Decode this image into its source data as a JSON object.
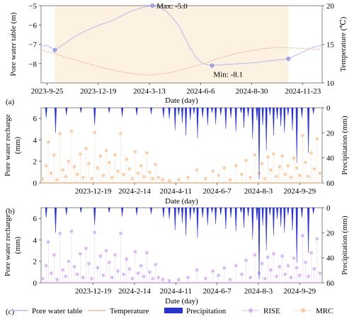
{
  "chart_data": [
    {
      "panel_label": "(a)",
      "type": "line",
      "xlabel": "Date (day)",
      "ylabel": "Pore water table (m)",
      "y2label": "Temperature (℃)",
      "x_ticks": [
        "2023-9-25",
        "2023-12-19",
        "2024-3-13",
        "2024-6-6",
        "2024-8-30",
        "2024-11-23"
      ],
      "x_range": [
        "2023-9-15",
        "2024-12-25"
      ],
      "ylim": [
        -9,
        -5
      ],
      "y_ticks": [
        -5,
        -6,
        -7,
        -8
      ],
      "y2lim": [
        10,
        20
      ],
      "y2_ticks": [
        20,
        15,
        10
      ],
      "shaded_period": [
        "2023-10-08",
        "2024-10-30"
      ],
      "shade_color": "#fdf1e1",
      "series": [
        {
          "name": "Pore water table",
          "color": "#b9b9ee",
          "points": [
            [
              "2023-9-15",
              -7.1
            ],
            [
              "2023-9-25",
              -7.05
            ],
            [
              "2023-10-08",
              -7.3
            ],
            [
              "2023-10-25",
              -6.95
            ],
            [
              "2023-11-10",
              -6.6
            ],
            [
              "2023-11-25",
              -6.35
            ],
            [
              "2023-12-10",
              -6.15
            ],
            [
              "2023-12-25",
              -5.95
            ],
            [
              "2024-1-10",
              -5.8
            ],
            [
              "2024-1-25",
              -5.55
            ],
            [
              "2024-2-10",
              -5.3
            ],
            [
              "2024-2-25",
              -5.15
            ],
            [
              "2024-3-08",
              -5.05
            ],
            [
              "2024-3-18",
              -5.0
            ],
            [
              "2024-3-30",
              -5.1
            ],
            [
              "2024-4-10",
              -5.3
            ],
            [
              "2024-4-20",
              -5.6
            ],
            [
              "2024-5-01",
              -6.05
            ],
            [
              "2024-5-10",
              -6.6
            ],
            [
              "2024-5-20",
              -7.2
            ],
            [
              "2024-5-30",
              -7.7
            ],
            [
              "2024-6-10",
              -8.0
            ],
            [
              "2024-6-25",
              -8.1
            ],
            [
              "2024-7-15",
              -8.05
            ],
            [
              "2024-8-10",
              -8.0
            ],
            [
              "2024-9-05",
              -7.95
            ],
            [
              "2024-10-01",
              -7.85
            ],
            [
              "2024-10-30",
              -7.75
            ],
            [
              "2024-11-23",
              -7.4
            ],
            [
              "2024-12-10",
              -7.15
            ],
            [
              "2024-12-25",
              -7.05
            ]
          ]
        },
        {
          "name": "Temperature",
          "axis": "right",
          "color": "#e8b9a9",
          "points": [
            [
              "2023-9-15",
              14.3
            ],
            [
              "2023-10-15",
              13.6
            ],
            [
              "2023-11-15",
              12.9
            ],
            [
              "2023-12-15",
              12.2
            ],
            [
              "2024-1-15",
              11.6
            ],
            [
              "2024-2-15",
              11.2
            ],
            [
              "2024-3-13",
              11.0
            ],
            [
              "2024-4-15",
              11.3
            ],
            [
              "2024-5-15",
              11.9
            ],
            [
              "2024-6-15",
              12.6
            ],
            [
              "2024-7-15",
              13.4
            ],
            [
              "2024-8-15",
              14.0
            ],
            [
              "2024-9-15",
              14.4
            ],
            [
              "2024-10-15",
              14.6
            ],
            [
              "2024-11-15",
              14.5
            ],
            [
              "2024-12-25",
              14.3
            ]
          ]
        }
      ],
      "markers": [
        {
          "date": "2023-10-08",
          "value": -7.3
        },
        {
          "date": "2024-3-18",
          "value": -5.0
        },
        {
          "date": "2024-6-25",
          "value": -8.1
        },
        {
          "date": "2024-10-30",
          "value": -7.75
        }
      ],
      "annotations": [
        {
          "text": "Max: -5.0",
          "date": "2024-3-18",
          "value": -5.0
        },
        {
          "text": "Min: -8.1",
          "date": "2024-6-25",
          "value": -8.1
        }
      ]
    },
    {
      "panel_label": "(b)",
      "type": "scatter",
      "xlabel": "Date (day)",
      "ylabel": "Pore water recharge (mm)",
      "y2label": "Precipitation (mm)",
      "x_ticks": [
        "2023-12-19",
        "2024-2-14",
        "2024-4-11",
        "2024-6-7",
        "2024-8-3",
        "2024-9-29"
      ],
      "x_range": [
        "2023-10-08",
        "2024-10-30"
      ],
      "ylim": [
        0,
        7
      ],
      "y_ticks": [
        0,
        2,
        4,
        6
      ],
      "y2lim": [
        0,
        60
      ],
      "y2_ticks": [
        0,
        20,
        40,
        60
      ],
      "series": [
        {
          "name": "MRC",
          "color": "#f7c9a0",
          "values_ref": "recharge"
        },
        {
          "name": "Precipitation",
          "color": "#2a35c8",
          "values_ref": "precipitation"
        }
      ]
    },
    {
      "panel_label": "(c)",
      "type": "scatter",
      "xlabel": "Date (day)",
      "ylabel": "Pore water recharge (mm)",
      "y2label": "Precipitation (mm)",
      "x_ticks": [
        "2023-12-19",
        "2024-2-14",
        "2024-4-11",
        "2024-6-7",
        "2024-8-3",
        "2024-9-29"
      ],
      "x_range": [
        "2023-10-08",
        "2024-10-30"
      ],
      "ylim": [
        0,
        7
      ],
      "y_ticks": [
        0,
        2,
        4,
        6
      ],
      "y2lim": [
        0,
        60
      ],
      "y2_ticks": [
        0,
        20,
        40,
        60
      ],
      "series": [
        {
          "name": "RISE",
          "color": "#d5b2ee",
          "values_ref": "recharge"
        },
        {
          "name": "Precipitation",
          "color": "#2a35c8",
          "values_ref": "precipitation"
        }
      ]
    }
  ],
  "recharge": [
    [
      "2023-10-10",
      0.4
    ],
    [
      "2023-10-15",
      1.6
    ],
    [
      "2023-10-18",
      3.8
    ],
    [
      "2023-10-22",
      0.9
    ],
    [
      "2023-10-26",
      2.6
    ],
    [
      "2023-10-30",
      0.3
    ],
    [
      "2023-11-03",
      4.6
    ],
    [
      "2023-11-07",
      1.2
    ],
    [
      "2023-11-11",
      0.6
    ],
    [
      "2023-11-15",
      2.0
    ],
    [
      "2023-11-19",
      4.8
    ],
    [
      "2023-11-23",
      1.5
    ],
    [
      "2023-11-27",
      0.8
    ],
    [
      "2023-12-01",
      2.7
    ],
    [
      "2023-12-05",
      0.5
    ],
    [
      "2023-12-09",
      3.2
    ],
    [
      "2023-12-13",
      1.8
    ],
    [
      "2023-12-17",
      0.4
    ],
    [
      "2023-12-21",
      4.7
    ],
    [
      "2023-12-25",
      1.4
    ],
    [
      "2023-12-29",
      2.5
    ],
    [
      "2024-1-02",
      0.7
    ],
    [
      "2024-1-06",
      3.0
    ],
    [
      "2024-1-10",
      1.9
    ],
    [
      "2024-1-14",
      0.5
    ],
    [
      "2024-1-18",
      2.6
    ],
    [
      "2024-1-22",
      1.1
    ],
    [
      "2024-1-26",
      4.6
    ],
    [
      "2024-1-30",
      0.8
    ],
    [
      "2024-2-03",
      2.2
    ],
    [
      "2024-2-07",
      1.3
    ],
    [
      "2024-2-11",
      0.4
    ],
    [
      "2024-2-15",
      2.9
    ],
    [
      "2024-2-19",
      0.9
    ],
    [
      "2024-2-23",
      1.6
    ],
    [
      "2024-2-27",
      0.6
    ],
    [
      "2024-3-02",
      2.8
    ],
    [
      "2024-3-06",
      1.0
    ],
    [
      "2024-3-10",
      0.4
    ],
    [
      "2024-3-14",
      1.7
    ],
    [
      "2024-3-18",
      0.5
    ],
    [
      "2024-3-24",
      0.3
    ],
    [
      "2024-4-02",
      0.2
    ],
    [
      "2024-4-15",
      0.3
    ],
    [
      "2024-4-28",
      0.5
    ],
    [
      "2024-5-10",
      1.2
    ],
    [
      "2024-5-22",
      0.4
    ],
    [
      "2024-6-01",
      1.1
    ],
    [
      "2024-6-09",
      0.7
    ],
    [
      "2024-6-17",
      1.4
    ],
    [
      "2024-6-25",
      0.3
    ],
    [
      "2024-7-03",
      1.6
    ],
    [
      "2024-7-11",
      0.8
    ],
    [
      "2024-7-17",
      2.1
    ],
    [
      "2024-7-23",
      0.5
    ],
    [
      "2024-7-29",
      2.6
    ],
    [
      "2024-8-04",
      0.9
    ],
    [
      "2024-8-08",
      1.8
    ],
    [
      "2024-8-12",
      0.4
    ],
    [
      "2024-8-16",
      2.4
    ],
    [
      "2024-8-20",
      1.2
    ],
    [
      "2024-8-24",
      2.7
    ],
    [
      "2024-8-28",
      0.6
    ],
    [
      "2024-9-01",
      1.5
    ],
    [
      "2024-9-05",
      2.5
    ],
    [
      "2024-9-09",
      0.8
    ],
    [
      "2024-9-13",
      1.6
    ],
    [
      "2024-9-17",
      0.5
    ],
    [
      "2024-9-21",
      2.3
    ],
    [
      "2024-9-25",
      1.4
    ],
    [
      "2024-9-29",
      0.7
    ],
    [
      "2024-10-03",
      4.4
    ],
    [
      "2024-10-07",
      1.9
    ],
    [
      "2024-10-11",
      0.6
    ],
    [
      "2024-10-15",
      2.8
    ],
    [
      "2024-10-19",
      1.3
    ],
    [
      "2024-10-23",
      4.1
    ],
    [
      "2024-10-27",
      0.9
    ]
  ],
  "precipitation": [
    [
      "2023-10-15",
      8
    ],
    [
      "2023-10-28",
      20
    ],
    [
      "2023-11-12",
      6
    ],
    [
      "2023-12-02",
      4
    ],
    [
      "2023-12-21",
      14
    ],
    [
      "2024-1-10",
      4
    ],
    [
      "2024-1-28",
      7
    ],
    [
      "2024-2-17",
      6
    ],
    [
      "2024-3-08",
      5
    ],
    [
      "2024-3-25",
      8
    ],
    [
      "2024-4-02",
      9
    ],
    [
      "2024-4-10",
      18
    ],
    [
      "2024-4-15",
      6
    ],
    [
      "2024-4-20",
      12
    ],
    [
      "2024-4-25",
      22
    ],
    [
      "2024-5-01",
      10
    ],
    [
      "2024-5-06",
      5
    ],
    [
      "2024-5-11",
      24
    ],
    [
      "2024-5-18",
      8
    ],
    [
      "2024-5-25",
      14
    ],
    [
      "2024-5-31",
      4
    ],
    [
      "2024-6-05",
      13
    ],
    [
      "2024-6-12",
      6
    ],
    [
      "2024-6-19",
      17
    ],
    [
      "2024-6-26",
      8
    ],
    [
      "2024-7-03",
      19
    ],
    [
      "2024-7-10",
      4
    ],
    [
      "2024-7-14",
      16
    ],
    [
      "2024-7-20",
      7
    ],
    [
      "2024-7-26",
      25
    ],
    [
      "2024-8-01",
      10
    ],
    [
      "2024-8-04",
      57
    ],
    [
      "2024-8-09",
      14
    ],
    [
      "2024-8-14",
      34
    ],
    [
      "2024-8-19",
      6
    ],
    [
      "2024-8-24",
      22
    ],
    [
      "2024-8-29",
      9
    ],
    [
      "2024-9-03",
      15
    ],
    [
      "2024-9-08",
      20
    ],
    [
      "2024-9-13",
      6
    ],
    [
      "2024-9-19",
      18
    ],
    [
      "2024-9-25",
      44
    ],
    [
      "2024-10-02",
      8
    ],
    [
      "2024-10-11",
      36
    ],
    [
      "2024-10-18",
      5
    ]
  ],
  "legend": {
    "items": [
      {
        "label": "Pore water table",
        "kind": "line",
        "color": "#b9b9ee"
      },
      {
        "label": "Temperature",
        "kind": "line",
        "color": "#e8b9a9"
      },
      {
        "label": "Precipitation",
        "kind": "area",
        "color": "#2a35c8"
      },
      {
        "label": "RISE",
        "kind": "dot",
        "color": "#d5b2ee"
      },
      {
        "label": "MRC",
        "kind": "dot",
        "color": "#f7c9a0"
      }
    ]
  }
}
